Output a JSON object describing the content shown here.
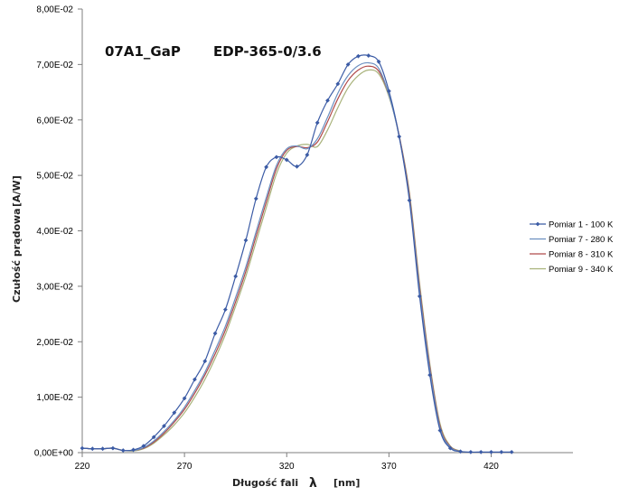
{
  "chart_data": {
    "type": "line",
    "title": "07A1_GaP",
    "subtitle": "EDP-365-0/3.6",
    "xlabel": "Długość fali",
    "xlabel_symbol": "λ",
    "xlabel_unit": "[nm]",
    "ylabel": "Czułość prądowa",
    "ylabel_unit": "[A/W]",
    "xlim": [
      220,
      460
    ],
    "ylim": [
      0,
      0.08
    ],
    "x_ticks": [
      "220",
      "270",
      "320",
      "370",
      "420"
    ],
    "y_ticks": [
      "0,00E+00",
      "1,00E-02",
      "2,00E-02",
      "3,00E-02",
      "4,00E-02",
      "5,00E-02",
      "6,00E-02",
      "7,00E-02",
      "8,00E-02"
    ],
    "grid": false,
    "legend_position": "right",
    "series": [
      {
        "name": "Pomiar 1 - 100 K",
        "color": "#3b5ba5",
        "marker": "diamond",
        "points": [
          [
            220,
            0.0008
          ],
          [
            225,
            0.0007
          ],
          [
            230,
            0.0007
          ],
          [
            235,
            0.0008
          ],
          [
            240,
            0.0004
          ],
          [
            245,
            0.0005
          ],
          [
            250,
            0.0012
          ],
          [
            255,
            0.0028
          ],
          [
            260,
            0.0048
          ],
          [
            265,
            0.0072
          ],
          [
            270,
            0.0098
          ],
          [
            275,
            0.0132
          ],
          [
            280,
            0.0165
          ],
          [
            285,
            0.0215
          ],
          [
            290,
            0.0258
          ],
          [
            295,
            0.0318
          ],
          [
            300,
            0.0383
          ],
          [
            305,
            0.0458
          ],
          [
            310,
            0.0515
          ],
          [
            315,
            0.0533
          ],
          [
            320,
            0.0528
          ],
          [
            325,
            0.0516
          ],
          [
            330,
            0.0537
          ],
          [
            335,
            0.0595
          ],
          [
            340,
            0.0635
          ],
          [
            345,
            0.0665
          ],
          [
            350,
            0.07
          ],
          [
            355,
            0.0715
          ],
          [
            360,
            0.0716
          ],
          [
            365,
            0.0705
          ],
          [
            370,
            0.0652
          ],
          [
            375,
            0.057
          ],
          [
            380,
            0.0455
          ],
          [
            385,
            0.0282
          ],
          [
            390,
            0.014
          ],
          [
            395,
            0.004
          ],
          [
            400,
            0.0008
          ],
          [
            405,
            0.0002
          ],
          [
            410,
            0.0001
          ],
          [
            415,
            0.0001
          ],
          [
            420,
            0.0001
          ],
          [
            425,
            0.0001
          ],
          [
            430,
            0.0001
          ]
        ]
      },
      {
        "name": "Pomiar 7 - 280 K",
        "color": "#6b8fc0",
        "marker": "none",
        "points": [
          [
            220,
            0.0008
          ],
          [
            225,
            0.0007
          ],
          [
            230,
            0.0007
          ],
          [
            235,
            0.0008
          ],
          [
            240,
            0.0004
          ],
          [
            245,
            0.0004
          ],
          [
            250,
            0.0009
          ],
          [
            255,
            0.0021
          ],
          [
            260,
            0.0038
          ],
          [
            265,
            0.0058
          ],
          [
            270,
            0.0082
          ],
          [
            275,
            0.0112
          ],
          [
            280,
            0.0145
          ],
          [
            285,
            0.0185
          ],
          [
            290,
            0.0228
          ],
          [
            295,
            0.028
          ],
          [
            300,
            0.0335
          ],
          [
            305,
            0.0398
          ],
          [
            310,
            0.046
          ],
          [
            315,
            0.0518
          ],
          [
            320,
            0.0548
          ],
          [
            325,
            0.0553
          ],
          [
            330,
            0.0548
          ],
          [
            335,
            0.0566
          ],
          [
            340,
            0.0605
          ],
          [
            345,
            0.0648
          ],
          [
            350,
            0.068
          ],
          [
            355,
            0.0698
          ],
          [
            360,
            0.0703
          ],
          [
            365,
            0.0693
          ],
          [
            370,
            0.0645
          ],
          [
            375,
            0.057
          ],
          [
            380,
            0.046
          ],
          [
            385,
            0.0292
          ],
          [
            390,
            0.015
          ],
          [
            395,
            0.0045
          ],
          [
            400,
            0.001
          ],
          [
            405,
            0.0002
          ]
        ]
      },
      {
        "name": "Pomiar 8 - 310 K",
        "color": "#b04a4a",
        "marker": "none",
        "points": [
          [
            220,
            0.0008
          ],
          [
            225,
            0.0007
          ],
          [
            230,
            0.0007
          ],
          [
            235,
            0.0008
          ],
          [
            240,
            0.0004
          ],
          [
            245,
            0.0004
          ],
          [
            250,
            0.0008
          ],
          [
            255,
            0.0019
          ],
          [
            260,
            0.0035
          ],
          [
            265,
            0.0055
          ],
          [
            270,
            0.0078
          ],
          [
            275,
            0.0107
          ],
          [
            280,
            0.014
          ],
          [
            285,
            0.0178
          ],
          [
            290,
            0.0221
          ],
          [
            295,
            0.0272
          ],
          [
            300,
            0.0327
          ],
          [
            305,
            0.039
          ],
          [
            310,
            0.0452
          ],
          [
            315,
            0.0512
          ],
          [
            320,
            0.0545
          ],
          [
            325,
            0.0552
          ],
          [
            330,
            0.055
          ],
          [
            335,
            0.056
          ],
          [
            340,
            0.0597
          ],
          [
            345,
            0.0638
          ],
          [
            350,
            0.0671
          ],
          [
            355,
            0.069
          ],
          [
            360,
            0.0697
          ],
          [
            365,
            0.0688
          ],
          [
            370,
            0.0645
          ],
          [
            375,
            0.0572
          ],
          [
            380,
            0.0465
          ],
          [
            385,
            0.0298
          ],
          [
            390,
            0.0155
          ],
          [
            395,
            0.0048
          ],
          [
            400,
            0.0011
          ],
          [
            405,
            0.0002
          ]
        ]
      },
      {
        "name": "Pomiar 9 - 340 K",
        "color": "#a8b27a",
        "marker": "none",
        "points": [
          [
            220,
            0.0008
          ],
          [
            225,
            0.0007
          ],
          [
            230,
            0.0007
          ],
          [
            235,
            0.0008
          ],
          [
            240,
            0.0004
          ],
          [
            245,
            0.0003
          ],
          [
            250,
            0.0007
          ],
          [
            255,
            0.0017
          ],
          [
            260,
            0.0032
          ],
          [
            265,
            0.005
          ],
          [
            270,
            0.0072
          ],
          [
            275,
            0.01
          ],
          [
            280,
            0.0132
          ],
          [
            285,
            0.017
          ],
          [
            290,
            0.0213
          ],
          [
            295,
            0.0264
          ],
          [
            300,
            0.0318
          ],
          [
            305,
            0.038
          ],
          [
            310,
            0.0442
          ],
          [
            315,
            0.0503
          ],
          [
            320,
            0.054
          ],
          [
            325,
            0.0553
          ],
          [
            330,
            0.0556
          ],
          [
            335,
            0.0552
          ],
          [
            340,
            0.0582
          ],
          [
            345,
            0.0622
          ],
          [
            350,
            0.0658
          ],
          [
            355,
            0.068
          ],
          [
            360,
            0.069
          ],
          [
            365,
            0.0683
          ],
          [
            370,
            0.0642
          ],
          [
            375,
            0.0572
          ],
          [
            380,
            0.047
          ],
          [
            385,
            0.0305
          ],
          [
            390,
            0.016
          ],
          [
            395,
            0.0052
          ],
          [
            400,
            0.0012
          ],
          [
            405,
            0.0003
          ]
        ]
      }
    ]
  }
}
